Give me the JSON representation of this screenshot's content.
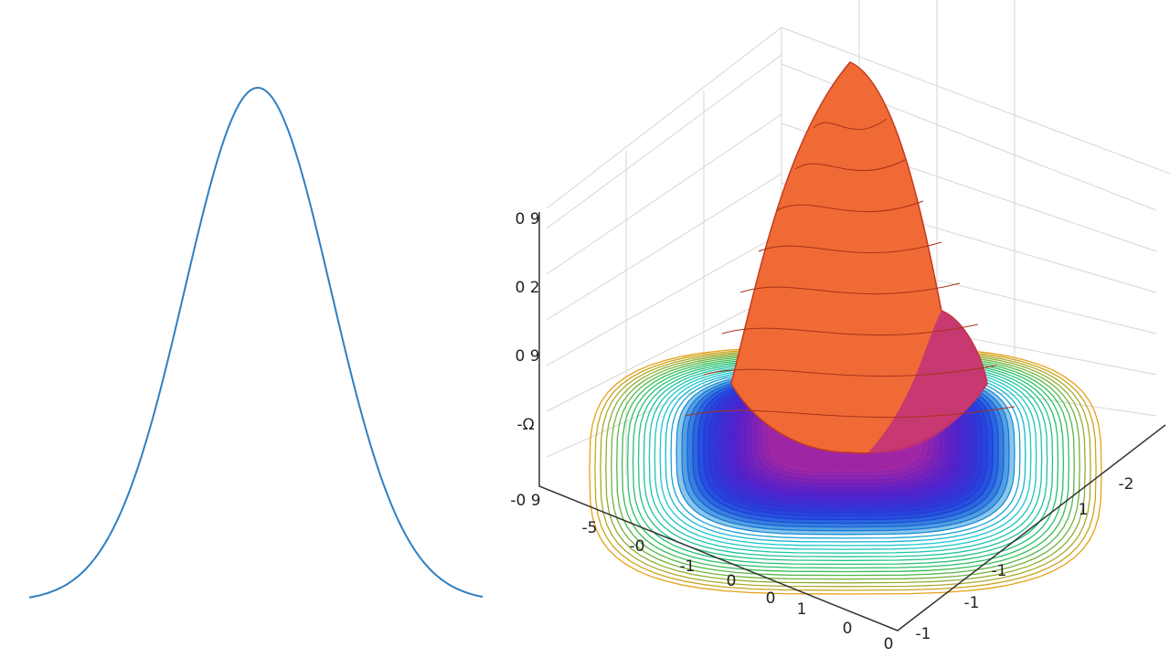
{
  "z_axis_labels": [
    "0 9",
    "0 2",
    "0 9",
    "-Ω",
    "-0 9"
  ],
  "x_axis_labels": [
    "-5",
    "-0",
    "-1",
    "0",
    "0",
    "1",
    "0",
    "0"
  ],
  "y_axis_labels": [
    "-2",
    "1",
    "-1",
    "-1",
    "-1"
  ]
}
